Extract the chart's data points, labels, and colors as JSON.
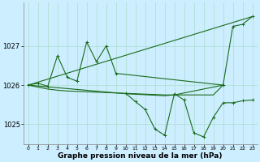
{
  "background_color": "#cceeff",
  "grid_color": "#aaddcc",
  "line_color": "#1a6b1a",
  "xlim": [
    -0.5,
    23.5
  ],
  "ylim": [
    1024.5,
    1028.1
  ],
  "yticks": [
    1025,
    1026,
    1027
  ],
  "xticks": [
    0,
    1,
    2,
    3,
    4,
    5,
    6,
    7,
    8,
    9,
    10,
    11,
    12,
    13,
    14,
    15,
    16,
    17,
    18,
    19,
    20,
    21,
    22,
    23
  ],
  "xlabel": "Graphe pression niveau de la mer (hPa)",
  "font_size_xlabel": 6.5,
  "font_size_ytick": 6,
  "font_size_xtick": 4.5,
  "line_width": 0.8,
  "marker_size": 3.5,
  "straight_line": {
    "x": [
      0,
      23
    ],
    "y": [
      1026.0,
      1027.75
    ]
  },
  "upper_zigzag": {
    "x": [
      0,
      1,
      2,
      3,
      4,
      5,
      6,
      7,
      8,
      9,
      20,
      21,
      22,
      23
    ],
    "y": [
      1026.0,
      1026.05,
      1025.97,
      1026.75,
      1026.2,
      1026.1,
      1027.1,
      1026.6,
      1027.0,
      1026.3,
      1026.0,
      1027.5,
      1027.55,
      1027.75
    ]
  },
  "flat_line1": {
    "x": [
      0,
      1,
      2,
      3,
      4,
      5,
      6,
      7,
      8,
      9,
      10,
      11,
      12,
      13,
      14,
      15,
      16,
      17,
      18,
      19,
      20
    ],
    "y": [
      1026.0,
      1025.95,
      1025.9,
      1025.87,
      1025.85,
      1025.84,
      1025.83,
      1025.82,
      1025.81,
      1025.8,
      1025.79,
      1025.78,
      1025.77,
      1025.76,
      1025.75,
      1025.75,
      1025.75,
      1025.75,
      1025.75,
      1025.75,
      1026.0
    ]
  },
  "flat_line2": {
    "x": [
      0,
      10,
      14,
      15,
      20
    ],
    "y": [
      1026.0,
      1025.78,
      1025.73,
      1025.75,
      1026.0
    ]
  },
  "lower_zigzag": {
    "x": [
      10,
      11,
      12,
      13,
      14,
      15,
      16,
      17,
      18,
      19,
      20,
      21,
      22,
      23
    ],
    "y": [
      1025.79,
      1025.58,
      1025.38,
      1024.88,
      1024.72,
      1025.78,
      1025.62,
      1024.78,
      1024.68,
      1025.18,
      1025.55,
      1025.55,
      1025.6,
      1025.62
    ]
  }
}
